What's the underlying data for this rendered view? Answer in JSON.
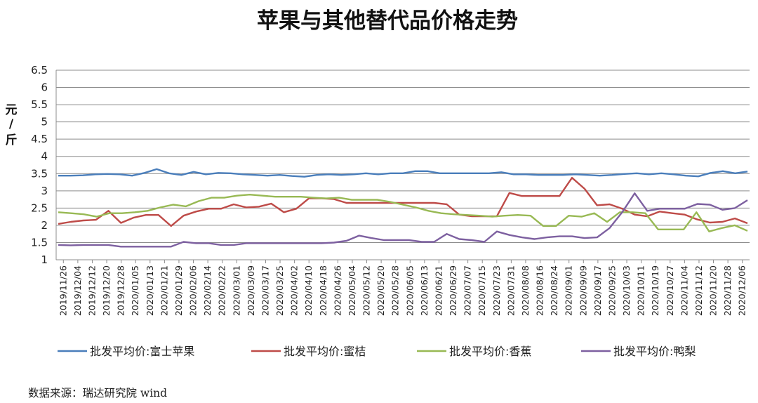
{
  "chart_data": {
    "type": "line",
    "title": "苹果与其他替代品价格走势",
    "ylabel_chars": [
      "元",
      "/",
      "斤"
    ],
    "ylim": [
      1,
      6.5
    ],
    "yticks": [
      "1",
      "1.5",
      "2",
      "2.5",
      "3",
      "3.5",
      "4",
      "4.5",
      "5",
      "5.5",
      "6",
      "6.5"
    ],
    "x_tick_labels": [
      "2019/11/26",
      "2019/12/04",
      "2019/12/12",
      "2019/12/20",
      "2019/12/28",
      "2020/01/05",
      "2020/01/13",
      "2020/01/21",
      "2020/01/29",
      "2020/02/06",
      "2020/02/14",
      "2020/02/22",
      "2020/03/01",
      "2020/03/09",
      "2020/03/17",
      "2020/03/25",
      "2020/04/02",
      "2020/04/10",
      "2020/04/18",
      "2020/04/26",
      "2020/05/04",
      "2020/05/12",
      "2020/05/20",
      "2020/05/28",
      "2020/06/05",
      "2020/06/13",
      "2020/06/21",
      "2020/06/29",
      "2020/07/07",
      "2020/07/15",
      "2020/07/23",
      "2020/07/31",
      "2020/08/08",
      "2020/08/16",
      "2020/08/24",
      "2020/09/01",
      "2020/09/09",
      "2020/09/17",
      "2020/09/25",
      "2020/10/03",
      "2020/10/11",
      "2020/10/19",
      "2020/10/27",
      "2020/11/04",
      "2020/11/12",
      "2020/11/20",
      "2020/11/28",
      "2020/12/06"
    ],
    "grid": true,
    "legend_position": "bottom",
    "series": [
      {
        "name": "批发平均价:富士苹果",
        "color": "#4a7ebb",
        "values": [
          3.44,
          3.44,
          3.45,
          3.48,
          3.49,
          3.48,
          3.44,
          3.52,
          3.63,
          3.51,
          3.46,
          3.55,
          3.48,
          3.52,
          3.51,
          3.48,
          3.46,
          3.44,
          3.46,
          3.43,
          3.41,
          3.46,
          3.48,
          3.46,
          3.48,
          3.51,
          3.48,
          3.51,
          3.51,
          3.57,
          3.57,
          3.51,
          3.51,
          3.51,
          3.51,
          3.51,
          3.54,
          3.48,
          3.48,
          3.46,
          3.46,
          3.46,
          3.48,
          3.46,
          3.44,
          3.46,
          3.49,
          3.51,
          3.48,
          3.51,
          3.48,
          3.44,
          3.42,
          3.52,
          3.57,
          3.51,
          3.56
        ]
      },
      {
        "name": "批发平均价:蜜桔",
        "color": "#be4b48",
        "values": [
          2.04,
          2.1,
          2.14,
          2.16,
          2.42,
          2.07,
          2.22,
          2.3,
          2.3,
          1.98,
          2.28,
          2.4,
          2.48,
          2.48,
          2.61,
          2.52,
          2.54,
          2.63,
          2.38,
          2.48,
          2.78,
          2.78,
          2.76,
          2.65,
          2.65,
          2.65,
          2.65,
          2.65,
          2.65,
          2.65,
          2.65,
          2.61,
          2.31,
          2.26,
          2.26,
          2.26,
          2.94,
          2.85,
          2.85,
          2.85,
          2.85,
          3.38,
          3.06,
          2.58,
          2.61,
          2.48,
          2.31,
          2.26,
          2.4,
          2.35,
          2.31,
          2.17,
          2.08,
          2.1,
          2.2,
          2.06
        ]
      },
      {
        "name": "批发平均价:香蕉",
        "color": "#98b954",
        "values": [
          2.38,
          2.35,
          2.32,
          2.25,
          2.35,
          2.35,
          2.38,
          2.42,
          2.52,
          2.6,
          2.55,
          2.7,
          2.8,
          2.8,
          2.86,
          2.89,
          2.86,
          2.83,
          2.83,
          2.83,
          2.8,
          2.78,
          2.8,
          2.74,
          2.74,
          2.74,
          2.68,
          2.6,
          2.52,
          2.42,
          2.35,
          2.32,
          2.3,
          2.28,
          2.25,
          2.28,
          2.3,
          2.28,
          1.98,
          1.98,
          2.28,
          2.25,
          2.35,
          2.1,
          2.38,
          2.38,
          2.35,
          1.88,
          1.88,
          1.88,
          2.38,
          1.82,
          1.92,
          2.0,
          1.84
        ]
      },
      {
        "name": "批发平均价:鸭梨",
        "color": "#7d60a0",
        "values": [
          1.43,
          1.42,
          1.43,
          1.43,
          1.43,
          1.38,
          1.38,
          1.38,
          1.38,
          1.38,
          1.52,
          1.48,
          1.48,
          1.43,
          1.43,
          1.48,
          1.48,
          1.48,
          1.48,
          1.48,
          1.48,
          1.48,
          1.5,
          1.55,
          1.7,
          1.63,
          1.57,
          1.57,
          1.57,
          1.52,
          1.52,
          1.75,
          1.6,
          1.57,
          1.52,
          1.82,
          1.72,
          1.65,
          1.6,
          1.65,
          1.68,
          1.68,
          1.63,
          1.65,
          1.92,
          2.38,
          2.93,
          2.42,
          2.48,
          2.48,
          2.48,
          2.62,
          2.6,
          2.45,
          2.5,
          2.73
        ]
      }
    ]
  },
  "source": "数据来源：瑞达研究院 wind"
}
